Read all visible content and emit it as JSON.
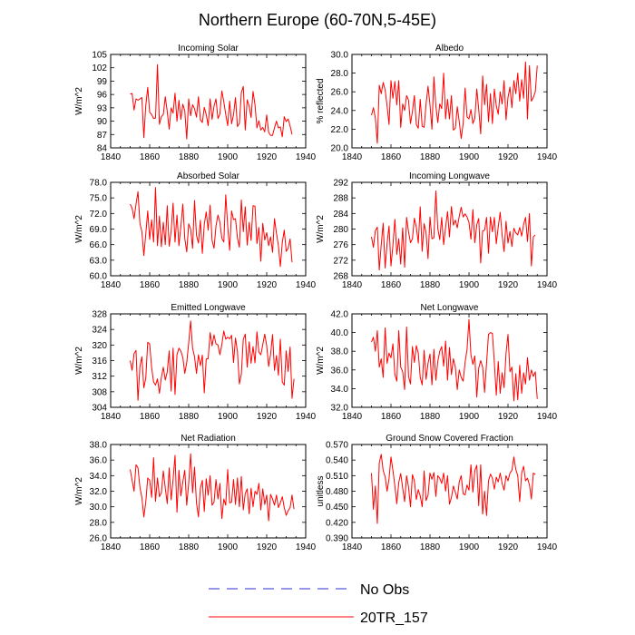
{
  "title": "Northern Europe (60-70N,5-45E)",
  "colors": {
    "model": "#ff0000",
    "obs": "#2b2bd6",
    "axis": "#000000"
  },
  "legend": [
    {
      "label": "No Obs",
      "style": "dashed",
      "color": "#2b2bd6"
    },
    {
      "label": "20TR_157",
      "style": "solid",
      "color": "#ff0000"
    }
  ],
  "chart_data": [
    {
      "type": "line",
      "title": "Incoming Solar",
      "ylabel": "W/m^2",
      "xlim": [
        1840,
        1940
      ],
      "xticks": [
        1840,
        1860,
        1880,
        1900,
        1920,
        1940
      ],
      "ylim": [
        84,
        105
      ],
      "yticks": [
        "84",
        "87",
        "90",
        "93",
        "96",
        "99",
        "102",
        "105"
      ],
      "series": [
        {
          "name": "20TR_157",
          "x_start": 1850,
          "values": [
            96.1,
            96.2,
            92.5,
            95.0,
            94.7,
            95.0,
            95.3,
            86.3,
            93.5,
            97.6,
            92.0,
            91.5,
            90.6,
            90.7,
            102.7,
            89.3,
            91.0,
            91.5,
            95.5,
            92.2,
            88.2,
            93.0,
            91.8,
            96.3,
            90.0,
            94.7,
            90.4,
            93.8,
            92.3,
            86.0,
            95.0,
            91.2,
            93.7,
            92.8,
            90.9,
            95.5,
            90.3,
            89.7,
            93.1,
            91.5,
            89.0,
            95.0,
            90.4,
            93.4,
            95.0,
            90.6,
            91.6,
            96.8,
            94.4,
            91.5,
            89.0,
            94.5,
            89.4,
            91.5,
            95.3,
            88.8,
            89.5,
            96.4,
            97.8,
            88.0,
            94.8,
            93.4,
            90.8,
            96.7,
            93.7,
            88.5,
            90.1,
            88.0,
            88.6,
            87.6,
            91.4,
            87.5,
            86.8,
            86.8,
            88.5,
            90.0,
            88.5,
            88.7,
            86.5,
            91.0,
            89.9,
            90.5,
            88.9,
            87.0
          ]
        }
      ]
    },
    {
      "type": "line",
      "title": "Albedo",
      "ylabel": "% reflected",
      "xlim": [
        1840,
        1940
      ],
      "xticks": [
        1840,
        1860,
        1880,
        1900,
        1920,
        1940
      ],
      "ylim": [
        20,
        30
      ],
      "yticks": [
        "20.0",
        "22.0",
        "24.0",
        "26.0",
        "28.0",
        "30.0"
      ],
      "series": [
        {
          "name": "20TR_157",
          "x_start": 1850,
          "values": [
            23.5,
            24.3,
            23.2,
            20.5,
            26.7,
            25.8,
            27.0,
            26.2,
            24.5,
            22.5,
            27.2,
            25.3,
            27.1,
            24.6,
            27.2,
            22.2,
            24.7,
            24.0,
            25.6,
            25.1,
            22.6,
            23.9,
            25.6,
            22.5,
            22.1,
            25.2,
            22.3,
            22.2,
            24.7,
            26.6,
            24.6,
            22.0,
            27.6,
            24.5,
            22.7,
            24.7,
            24.2,
            28.0,
            23.1,
            25.2,
            23.1,
            25.6,
            21.9,
            22.1,
            24.4,
            22.8,
            21.0,
            22.6,
            26.4,
            23.3,
            23.1,
            24.1,
            22.6,
            23.2,
            26.3,
            24.1,
            21.5,
            27.7,
            24.6,
            26.8,
            22.8,
            25.8,
            22.6,
            26.3,
            24.5,
            23.6,
            26.0,
            24.7,
            27.2,
            23.0,
            25.4,
            26.5,
            24.3,
            27.2,
            25.8,
            28.0,
            25.0,
            27.3,
            25.3,
            29.2,
            23.1,
            28.8,
            25.0,
            25.4,
            26.0,
            28.8
          ]
        }
      ]
    },
    {
      "type": "line",
      "title": "Absorbed Solar",
      "ylabel": "W/m^2",
      "xlim": [
        1840,
        1940
      ],
      "xticks": [
        1840,
        1860,
        1880,
        1900,
        1920,
        1940
      ],
      "ylim": [
        60,
        78
      ],
      "yticks": [
        "60.0",
        "63.0",
        "66.0",
        "69.0",
        "72.0",
        "75.0",
        "78.0"
      ],
      "series": [
        {
          "name": "20TR_157",
          "x_start": 1850,
          "values": [
            73.8,
            73.0,
            71.0,
            73.8,
            76.2,
            70.1,
            68.5,
            63.9,
            68.0,
            72.5,
            67.0,
            70.8,
            66.5,
            77.0,
            65.8,
            71.5,
            65.6,
            70.3,
            66.0,
            73.5,
            65.7,
            68.6,
            74.0,
            66.5,
            71.7,
            65.8,
            69.5,
            73.8,
            67.2,
            64.6,
            70.0,
            69.0,
            65.3,
            74.5,
            67.8,
            66.3,
            70.7,
            64.3,
            69.9,
            72.3,
            68.8,
            73.6,
            66.8,
            65.3,
            69.6,
            71.7,
            70.3,
            67.2,
            66.5,
            75.6,
            69.6,
            64.9,
            72.5,
            70.8,
            71.0,
            67.3,
            65.5,
            74.6,
            68.5,
            73.3,
            65.9,
            70.3,
            66.8,
            73.5,
            73.4,
            66.2,
            69.3,
            62.8,
            70.1,
            66.9,
            68.3,
            65.8,
            67.5,
            64.5,
            71.0,
            68.2,
            65.8,
            61.8,
            66.4,
            68.8,
            64.7,
            65.3,
            67.1,
            62.6
          ]
        }
      ]
    },
    {
      "type": "line",
      "title": "Incoming Longwave",
      "ylabel": "W/m^2",
      "xlim": [
        1840,
        1940
      ],
      "xticks": [
        1840,
        1860,
        1880,
        1900,
        1920,
        1940
      ],
      "ylim": [
        268,
        292
      ],
      "yticks": [
        "268",
        "272",
        "276",
        "280",
        "284",
        "288",
        "292"
      ],
      "series": [
        {
          "name": "20TR_157",
          "x_start": 1850,
          "values": [
            278.0,
            275.3,
            279.6,
            280.5,
            269.5,
            276.0,
            281.5,
            270.0,
            276.3,
            280.8,
            270.5,
            275.8,
            282.5,
            273.5,
            277.5,
            271.0,
            280.3,
            270.2,
            283.0,
            279.3,
            276.5,
            277.5,
            282.8,
            280.5,
            276.4,
            285.7,
            274.3,
            281.4,
            279.0,
            272.4,
            283.1,
            277.5,
            277.8,
            289.8,
            280.2,
            277.3,
            283.0,
            276.0,
            280.4,
            284.5,
            278.0,
            285.8,
            281.0,
            282.3,
            280.3,
            283.3,
            285.6,
            283.1,
            283.9,
            283.1,
            281.7,
            277.4,
            285.0,
            276.5,
            281.1,
            282.7,
            271.3,
            279.5,
            279.7,
            283.0,
            273.8,
            283.1,
            279.3,
            283.0,
            276.2,
            280.6,
            284.3,
            278.4,
            274.2,
            282.0,
            276.4,
            279.4,
            275.5,
            280.2,
            279.0,
            278.5,
            280.4,
            278.2,
            281.2,
            283.0,
            276.8,
            284.0,
            270.5,
            278.0,
            278.5
          ]
        }
      ]
    },
    {
      "type": "line",
      "title": "Emitted Longwave",
      "ylabel": "W/m^2",
      "xlim": [
        1840,
        1940
      ],
      "xticks": [
        1840,
        1860,
        1880,
        1900,
        1920,
        1940
      ],
      "ylim": [
        304,
        328
      ],
      "yticks": [
        "304",
        "308",
        "312",
        "316",
        "320",
        "324",
        "328"
      ],
      "series": [
        {
          "name": "20TR_157",
          "x_start": 1850,
          "values": [
            316.0,
            313.5,
            317.8,
            318.6,
            305.8,
            314.5,
            317.0,
            309.0,
            311.5,
            320.7,
            320.3,
            314.2,
            310.5,
            309.7,
            311.3,
            307.6,
            311.7,
            314.3,
            311.0,
            313.1,
            318.5,
            308.2,
            319.2,
            307.3,
            317.5,
            319.2,
            318.4,
            316.8,
            312.7,
            315.5,
            320.5,
            326.2,
            319.2,
            317.0,
            312.7,
            317.5,
            314.7,
            317.4,
            307.7,
            316.4,
            316.5,
            323.2,
            319.8,
            322.6,
            320.3,
            320.0,
            317.5,
            320.1,
            323.6,
            321.5,
            322.0,
            321.6,
            322.5,
            315.5,
            321.8,
            318.3,
            310.0,
            312.5,
            321.5,
            322.8,
            314.3,
            320.8,
            315.3,
            319.6,
            315.4,
            323.4,
            318.2,
            317.5,
            320.1,
            322.8,
            319.8,
            314.5,
            317.6,
            322.7,
            313.5,
            317.3,
            312.2,
            321.5,
            310.5,
            309.7,
            318.5,
            313.2,
            319.5,
            306.3,
            311.3
          ]
        }
      ]
    },
    {
      "type": "line",
      "title": "Net Longwave",
      "ylabel": "W/m^2",
      "xlim": [
        1840,
        1940
      ],
      "xticks": [
        1840,
        1860,
        1880,
        1900,
        1920,
        1940
      ],
      "ylim": [
        32,
        42
      ],
      "yticks": [
        "32.0",
        "34.0",
        "36.0",
        "38.0",
        "40.0",
        "42.0"
      ],
      "series": [
        {
          "name": "20TR_157",
          "x_start": 1850,
          "values": [
            39.0,
            39.5,
            38.0,
            40.2,
            36.3,
            37.2,
            35.2,
            40.5,
            36.7,
            37.8,
            37.3,
            38.8,
            35.5,
            34.8,
            40.2,
            36.3,
            35.8,
            33.9,
            40.6,
            35.3,
            34.5,
            38.5,
            36.8,
            38.6,
            37.8,
            35.2,
            34.4,
            38.1,
            35.0,
            36.7,
            37.7,
            34.4,
            38.2,
            34.9,
            36.9,
            38.0,
            38.5,
            36.4,
            39.1,
            34.9,
            38.4,
            35.5,
            37.2,
            36.3,
            33.9,
            36.0,
            35.2,
            34.8,
            36.8,
            38.2,
            41.4,
            37.6,
            36.6,
            37.5,
            33.1,
            36.2,
            37.0,
            36.3,
            33.6,
            36.7,
            39.8,
            40.0,
            39.9,
            36.8,
            33.3,
            36.9,
            33.5,
            35.7,
            34.1,
            37.8,
            39.8,
            35.8,
            36.3,
            32.7,
            35.6,
            32.8,
            36.5,
            33.5,
            35.7,
            34.5,
            37.3,
            34.9,
            36.0,
            35.3,
            35.8,
            32.9
          ]
        }
      ]
    },
    {
      "type": "line",
      "title": "Net Radiation",
      "ylabel": "W/m^2",
      "xlim": [
        1840,
        1940
      ],
      "xticks": [
        1840,
        1860,
        1880,
        1900,
        1920,
        1940
      ],
      "ylim": [
        26,
        38
      ],
      "yticks": [
        "26.0",
        "28.0",
        "30.0",
        "32.0",
        "34.0",
        "36.0",
        "38.0"
      ],
      "series": [
        {
          "name": "20TR_157",
          "x_start": 1850,
          "values": [
            34.8,
            33.4,
            32.0,
            35.4,
            35.0,
            32.5,
            31.2,
            28.7,
            30.6,
            33.7,
            33.4,
            31.2,
            36.3,
            30.7,
            33.7,
            31.3,
            31.8,
            34.6,
            32.4,
            30.4,
            35.0,
            30.9,
            33.5,
            36.6,
            29.3,
            34.7,
            31.4,
            33.2,
            34.7,
            30.2,
            33.0,
            36.8,
            31.8,
            35.1,
            30.5,
            28.7,
            32.4,
            33.4,
            29.4,
            33.6,
            31.5,
            34.0,
            30.2,
            30.6,
            33.5,
            31.0,
            33.0,
            28.5,
            31.0,
            30.2,
            34.8,
            30.5,
            30.6,
            33.5,
            30.3,
            33.7,
            30.0,
            33.9,
            29.6,
            31.7,
            32.3,
            29.1,
            32.4,
            30.0,
            32.0,
            31.6,
            33.0,
            29.6,
            32.3,
            30.3,
            31.5,
            28.2,
            31.6,
            31.0,
            30.2,
            31.5,
            29.9,
            30.5,
            31.3,
            29.9,
            28.9,
            29.5,
            29.9,
            31.5,
            29.7
          ]
        }
      ]
    },
    {
      "type": "line",
      "title": "Ground Snow Covered Fraction",
      "ylabel": "unitless",
      "xlim": [
        1840,
        1940
      ],
      "xticks": [
        1840,
        1860,
        1880,
        1900,
        1920,
        1940
      ],
      "ylim": [
        0.39,
        0.57
      ],
      "yticks": [
        "0.390",
        "0.420",
        "0.450",
        "0.480",
        "0.510",
        "0.540",
        "0.570"
      ],
      "series": [
        {
          "name": "20TR_157",
          "x_start": 1850,
          "values": [
            0.515,
            0.445,
            0.49,
            0.418,
            0.535,
            0.551,
            0.52,
            0.508,
            0.48,
            0.504,
            0.546,
            0.52,
            0.49,
            0.456,
            0.497,
            0.514,
            0.486,
            0.46,
            0.51,
            0.488,
            0.45,
            0.512,
            0.5,
            0.464,
            0.483,
            0.471,
            0.45,
            0.519,
            0.462,
            0.472,
            0.515,
            0.503,
            0.516,
            0.47,
            0.51,
            0.505,
            0.495,
            0.515,
            0.48,
            0.51,
            0.455,
            0.468,
            0.49,
            0.478,
            0.465,
            0.498,
            0.51,
            0.475,
            0.473,
            0.492,
            0.482,
            0.531,
            0.478,
            0.52,
            0.53,
            0.452,
            0.531,
            0.436,
            0.48,
            0.433,
            0.5,
            0.513,
            0.505,
            0.484,
            0.507,
            0.498,
            0.515,
            0.495,
            0.482,
            0.51,
            0.5,
            0.515,
            0.52,
            0.546,
            0.522,
            0.51,
            0.46,
            0.515,
            0.528,
            0.5,
            0.505,
            0.492,
            0.465,
            0.515,
            0.512
          ]
        }
      ]
    }
  ]
}
